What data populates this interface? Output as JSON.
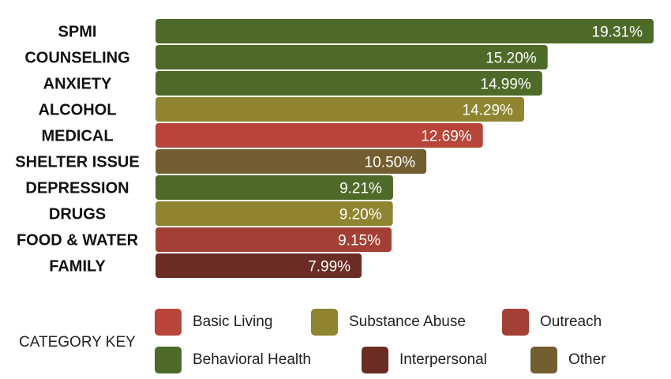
{
  "chart_data": {
    "type": "bar",
    "orientation": "horizontal",
    "categories": [
      "SPMI",
      "COUNSELING",
      "ANXIETY",
      "ALCOHOL",
      "MEDICAL",
      "SHELTER ISSUE",
      "DEPRESSION",
      "DRUGS",
      "FOOD & WATER",
      "FAMILY"
    ],
    "values": [
      19.31,
      15.2,
      14.99,
      14.29,
      12.69,
      10.5,
      9.21,
      9.2,
      9.15,
      7.99
    ],
    "value_labels": [
      "19.31%",
      "15.20%",
      "14.99%",
      "14.29%",
      "12.69%",
      "10.50%",
      "9.21%",
      "9.20%",
      "9.15%",
      "7.99%"
    ],
    "bar_categories": [
      "Behavioral Health",
      "Behavioral Health",
      "Behavioral Health",
      "Substance Abuse",
      "Basic Living",
      "Other",
      "Behavioral Health",
      "Substance Abuse",
      "Outreach",
      "Interpersonal"
    ],
    "xlim": [
      0,
      19.31
    ],
    "grid": false,
    "legend_position": "bottom",
    "legend_title": "CATEGORY KEY",
    "legend": [
      {
        "label": "Basic Living",
        "color": "#B9443A"
      },
      {
        "label": "Substance Abuse",
        "color": "#8F842F"
      },
      {
        "label": "Outreach",
        "color": "#A43F35"
      },
      {
        "label": "Behavioral Health",
        "color": "#4E6A29"
      },
      {
        "label": "Interpersonal",
        "color": "#6A2C23"
      },
      {
        "label": "Other",
        "color": "#725E30"
      }
    ]
  }
}
